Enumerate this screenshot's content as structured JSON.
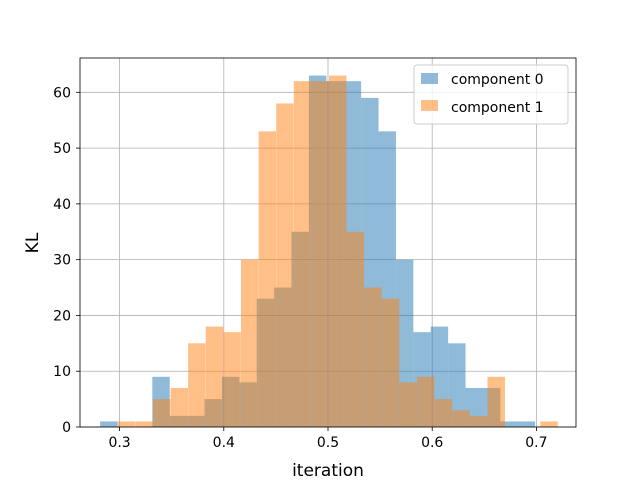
{
  "chart_data": {
    "type": "histogram",
    "xlabel": "iteration",
    "ylabel": "KL",
    "xlim": [
      0.262,
      0.738
    ],
    "ylim": [
      0,
      66.15
    ],
    "x_ticks": [
      0.3,
      0.4,
      0.5,
      0.6,
      0.7
    ],
    "y_ticks": [
      0,
      10,
      20,
      30,
      40,
      50,
      60
    ],
    "grid": true,
    "legend_placement": "top-right",
    "colors": {
      "component 0": "#1f77b4",
      "component 1": "#ff7f0e"
    },
    "bar_alpha": 0.5,
    "bin_width": 0.0167,
    "series": [
      {
        "name": "component 0",
        "bin_starts": [
          0.2813,
          0.298,
          0.3147,
          0.3314,
          0.3481,
          0.3648,
          0.3815,
          0.3982,
          0.4149,
          0.4316,
          0.4483,
          0.465,
          0.4817,
          0.4984,
          0.5151,
          0.5318,
          0.5485,
          0.5652,
          0.5819,
          0.5986,
          0.6153,
          0.632,
          0.6487,
          0.6654,
          0.6821
        ],
        "counts": [
          1,
          0,
          0,
          9,
          2,
          2,
          5,
          9,
          8,
          23,
          25,
          35,
          63,
          62,
          62,
          59,
          53,
          30,
          17,
          18,
          15,
          7,
          7,
          1,
          1
        ]
      },
      {
        "name": "component 1",
        "bin_starts": [
          0.2982,
          0.3151,
          0.332,
          0.3489,
          0.3658,
          0.3827,
          0.3996,
          0.4165,
          0.4334,
          0.4503,
          0.4672,
          0.4841,
          0.501,
          0.5179,
          0.5348,
          0.5517,
          0.5686,
          0.5855,
          0.6024,
          0.6193,
          0.6362,
          0.6531,
          0.67,
          0.6869,
          0.7038
        ],
        "counts": [
          1,
          1,
          5,
          7,
          15,
          18,
          17,
          30,
          53,
          58,
          62,
          62,
          63,
          35,
          25,
          23,
          8,
          9,
          5,
          3,
          2,
          9,
          0,
          0,
          1
        ]
      }
    ]
  }
}
